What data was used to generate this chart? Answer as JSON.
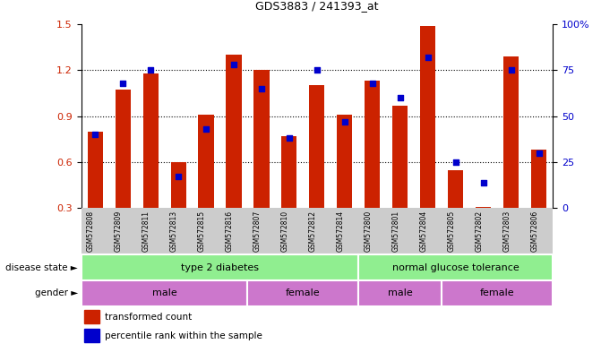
{
  "title": "GDS3883 / 241393_at",
  "samples": [
    "GSM572808",
    "GSM572809",
    "GSM572811",
    "GSM572813",
    "GSM572815",
    "GSM572816",
    "GSM572807",
    "GSM572810",
    "GSM572812",
    "GSM572814",
    "GSM572800",
    "GSM572801",
    "GSM572804",
    "GSM572805",
    "GSM572802",
    "GSM572803",
    "GSM572806"
  ],
  "red_values": [
    0.8,
    1.07,
    1.18,
    0.6,
    0.91,
    1.3,
    1.2,
    0.77,
    1.1,
    0.91,
    1.13,
    0.97,
    1.49,
    0.55,
    0.31,
    1.29,
    0.68
  ],
  "blue_values": [
    40,
    68,
    75,
    17,
    43,
    78,
    65,
    38,
    75,
    47,
    68,
    60,
    82,
    25,
    14,
    75,
    30
  ],
  "ylim_left": [
    0.3,
    1.5
  ],
  "ylim_right": [
    0,
    100
  ],
  "yticks_left": [
    0.3,
    0.6,
    0.9,
    1.2,
    1.5
  ],
  "yticks_right": [
    0,
    25,
    50,
    75,
    100
  ],
  "ytick_labels_right": [
    "0",
    "25",
    "50",
    "75",
    "100%"
  ],
  "bar_color": "#CC2200",
  "dot_color": "#0000CC",
  "background_color": "#FFFFFF",
  "tick_bg_color": "#CCCCCC",
  "green_color": "#90EE90",
  "purple_color_dark": "#CC77CC",
  "purple_color_light": "#EE99EE",
  "legend_items": [
    "transformed count",
    "percentile rank within the sample"
  ],
  "disease_divider": 10,
  "n_samples": 17,
  "grid_lines": [
    0.6,
    0.9,
    1.2
  ],
  "gender_groups": [
    {
      "label": "male",
      "start": 0,
      "end": 6
    },
    {
      "label": "female",
      "start": 6,
      "end": 10
    },
    {
      "label": "male",
      "start": 10,
      "end": 13
    },
    {
      "label": "female",
      "start": 13,
      "end": 17
    }
  ]
}
